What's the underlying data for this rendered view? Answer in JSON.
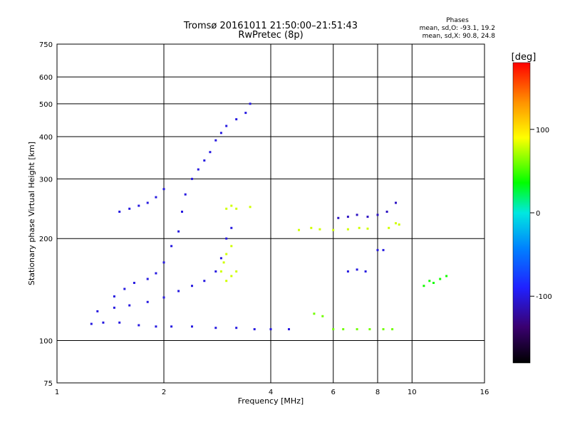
{
  "chart_data": {
    "type": "scatter",
    "title": "Tromsø 20161011 21:50:00–21:51:43",
    "subtitle": "RwPretec (8p)",
    "phases_header": "Phases",
    "phases_o": "mean, sd,O: -93.1, 19.2",
    "phases_x": "mean, sd,X:  90.8, 24.8",
    "xlabel": "Frequency [MHz]",
    "ylabel": "Stationary phase Virtual Height [km]",
    "x_scale": "log",
    "y_scale": "log",
    "xlim": [
      1,
      16
    ],
    "ylim": [
      75,
      750
    ],
    "x_ticks": [
      1,
      2,
      4,
      6,
      8,
      10,
      16
    ],
    "x_tick_labels": [
      "1",
      "2",
      "4",
      "6",
      "8",
      "10",
      "16"
    ],
    "y_ticks": [
      75,
      100,
      200,
      300,
      400,
      500,
      600,
      750
    ],
    "y_tick_labels": [
      "75",
      "100",
      "200",
      "300",
      "400",
      "500",
      "600",
      "750"
    ],
    "grid": true,
    "colorbar": {
      "label": "[deg]",
      "range": [
        -180,
        180
      ],
      "ticks": [
        100,
        0,
        -100
      ],
      "tick_labels": [
        "100",
        "0",
        "-100"
      ]
    },
    "traces": [
      {
        "name": "",
        "phase": -100,
        "points": [
          [
            1.25,
            112
          ],
          [
            1.35,
            113
          ],
          [
            1.5,
            113
          ],
          [
            1.7,
            111
          ],
          [
            1.9,
            110
          ],
          [
            2.1,
            110
          ],
          [
            2.4,
            110
          ],
          [
            2.8,
            109
          ],
          [
            3.2,
            109
          ],
          [
            3.6,
            108
          ],
          [
            4.0,
            108
          ],
          [
            4.5,
            108
          ]
        ]
      },
      {
        "name": "",
        "phase": -100,
        "points": [
          [
            1.3,
            122
          ],
          [
            1.45,
            125
          ],
          [
            1.6,
            127
          ],
          [
            1.8,
            130
          ],
          [
            2.0,
            134
          ],
          [
            2.2,
            140
          ],
          [
            2.4,
            145
          ],
          [
            2.6,
            150
          ],
          [
            2.8,
            160
          ],
          [
            2.9,
            175
          ],
          [
            3.0,
            200
          ],
          [
            3.1,
            215
          ]
        ]
      },
      {
        "name": "",
        "phase": -100,
        "points": [
          [
            1.45,
            135
          ],
          [
            1.55,
            142
          ],
          [
            1.65,
            148
          ],
          [
            1.8,
            152
          ],
          [
            1.9,
            158
          ],
          [
            2.0,
            170
          ],
          [
            2.1,
            190
          ],
          [
            2.2,
            210
          ],
          [
            2.25,
            240
          ],
          [
            2.3,
            270
          ],
          [
            2.4,
            300
          ],
          [
            2.5,
            320
          ],
          [
            2.6,
            340
          ],
          [
            2.7,
            360
          ],
          [
            2.8,
            390
          ],
          [
            2.9,
            410
          ],
          [
            3.0,
            430
          ],
          [
            3.2,
            450
          ],
          [
            3.4,
            470
          ],
          [
            3.5,
            500
          ]
        ]
      },
      {
        "name": "",
        "phase": -100,
        "points": [
          [
            1.5,
            240
          ],
          [
            1.6,
            245
          ],
          [
            1.7,
            250
          ],
          [
            1.8,
            255
          ],
          [
            1.9,
            265
          ],
          [
            2.0,
            280
          ]
        ]
      },
      {
        "name": "",
        "phase": 80,
        "points": [
          [
            2.9,
            160
          ],
          [
            2.95,
            170
          ],
          [
            3.0,
            180
          ],
          [
            3.1,
            190
          ],
          [
            3.0,
            150
          ],
          [
            3.1,
            155
          ],
          [
            3.2,
            160
          ]
        ]
      },
      {
        "name": "",
        "phase": 80,
        "points": [
          [
            3.0,
            245
          ],
          [
            3.1,
            250
          ],
          [
            3.2,
            245
          ],
          [
            3.5,
            248
          ]
        ]
      },
      {
        "name": "",
        "phase": 80,
        "points": [
          [
            4.8,
            212
          ],
          [
            5.2,
            215
          ],
          [
            5.5,
            213
          ],
          [
            6.0,
            212
          ],
          [
            6.6,
            213
          ],
          [
            7.1,
            215
          ],
          [
            7.5,
            214
          ]
        ]
      },
      {
        "name": "",
        "phase": 80,
        "points": [
          [
            8.6,
            215
          ],
          [
            9.0,
            222
          ],
          [
            9.2,
            220
          ]
        ]
      },
      {
        "name": "",
        "phase": 60,
        "points": [
          [
            5.3,
            120
          ],
          [
            5.6,
            118
          ],
          [
            6.0,
            108
          ],
          [
            6.4,
            108
          ],
          [
            7.0,
            108
          ],
          [
            7.6,
            108
          ],
          [
            8.3,
            108
          ],
          [
            8.8,
            108
          ]
        ]
      },
      {
        "name": "",
        "phase": 40,
        "points": [
          [
            10.8,
            145
          ],
          [
            11.2,
            150
          ],
          [
            11.5,
            148
          ],
          [
            12.0,
            152
          ],
          [
            12.5,
            155
          ]
        ]
      },
      {
        "name": "",
        "phase": -100,
        "points": [
          [
            6.6,
            160
          ],
          [
            7.0,
            162
          ],
          [
            7.4,
            160
          ],
          [
            8.0,
            185
          ],
          [
            8.3,
            185
          ]
        ]
      },
      {
        "name": "",
        "phase": -110,
        "points": [
          [
            6.2,
            230
          ],
          [
            6.6,
            232
          ],
          [
            7.0,
            235
          ],
          [
            7.5,
            232
          ],
          [
            8.0,
            235
          ],
          [
            8.5,
            240
          ],
          [
            9.0,
            255
          ]
        ]
      }
    ]
  }
}
